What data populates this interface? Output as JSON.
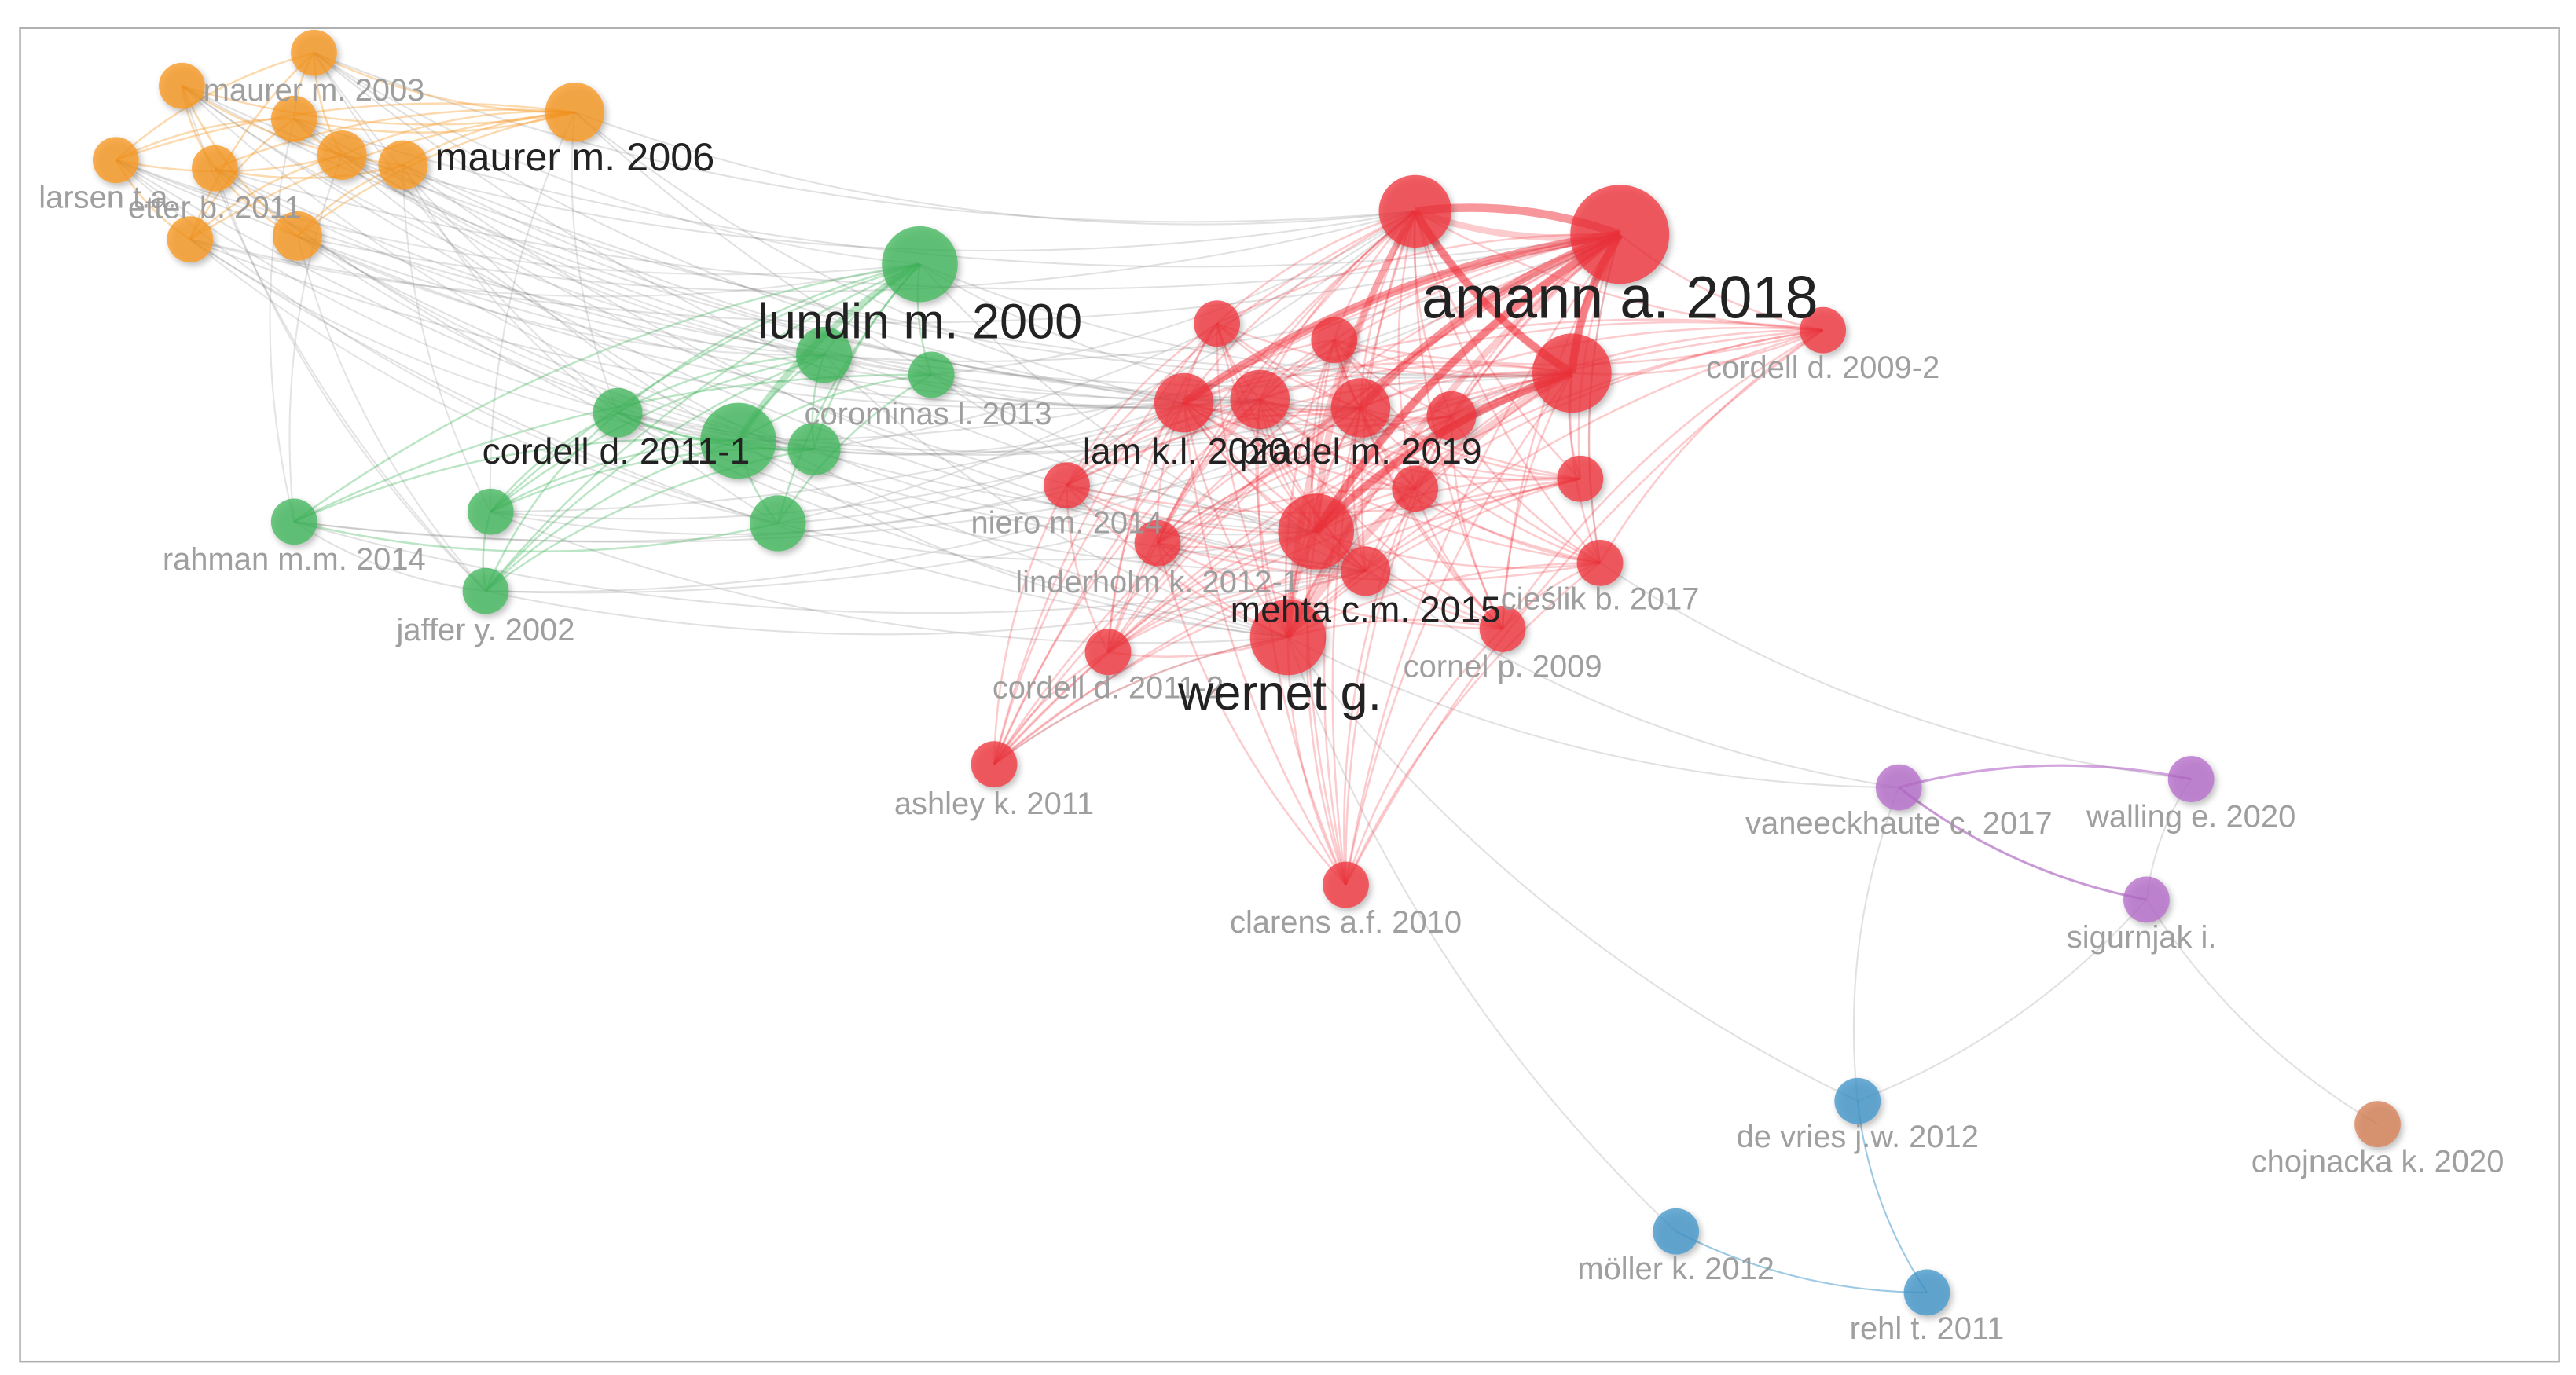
{
  "nodes": [
    {
      "label": "maurer m. 2003"
    },
    {
      "label": "maurer m. 2006"
    },
    {
      "label": "larsen t.a."
    },
    {
      "label": "etter b. 2011"
    },
    {
      "label": "lundin m. 2000"
    },
    {
      "label": "corominas l. 2013"
    },
    {
      "label": "cordell d. 2011-1"
    },
    {
      "label": "rahman m.m. 2014"
    },
    {
      "label": "jaffer y. 2002"
    },
    {
      "label": "amann a. 2018"
    },
    {
      "label": "cordell d. 2009-2"
    },
    {
      "label": "lam k.l. 2020"
    },
    {
      "label": "pradel m. 2019"
    },
    {
      "label": "niero m. 2014"
    },
    {
      "label": "linderholm k. 2012-1"
    },
    {
      "label": "cieślik b. 2017"
    },
    {
      "label": "mehta c.m. 2015"
    },
    {
      "label": "cornel p. 2009"
    },
    {
      "label": "cordell d. 2011-2"
    },
    {
      "label": "wernet g."
    },
    {
      "label": "ashley k. 2011"
    },
    {
      "label": "clarens a.f. 2010"
    },
    {
      "label": "vaneeckhaute c. 2017"
    },
    {
      "label": "walling e. 2020"
    },
    {
      "label": "sigurnjak i."
    },
    {
      "label": "de vries j.w. 2012"
    },
    {
      "label": "möller k. 2012"
    },
    {
      "label": "rehl t. 2011"
    },
    {
      "label": "chojnacka k. 2020"
    }
  ]
}
